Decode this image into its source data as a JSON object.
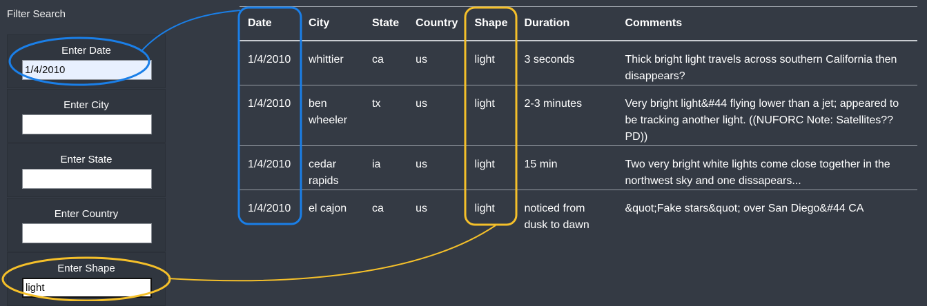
{
  "sidebar": {
    "title": "Filter Search",
    "filters": [
      {
        "label": "Enter Date",
        "value": "1/4/2010"
      },
      {
        "label": "Enter City",
        "value": ""
      },
      {
        "label": "Enter State",
        "value": ""
      },
      {
        "label": "Enter Country",
        "value": ""
      },
      {
        "label": "Enter Shape",
        "value": "light"
      }
    ]
  },
  "table": {
    "headers": [
      "Date",
      "City",
      "State",
      "Country",
      "Shape",
      "Duration",
      "Comments"
    ],
    "rows": [
      {
        "date": "1/4/2010",
        "city": "whittier",
        "state": "ca",
        "country": "us",
        "shape": "light",
        "duration": "3 seconds",
        "comments": "Thick bright light travels across southern California then disappears?"
      },
      {
        "date": "1/4/2010",
        "city": "ben wheeler",
        "state": "tx",
        "country": "us",
        "shape": "light",
        "duration": "2-3 minutes",
        "comments": "Very bright light&#44 flying lower than a jet; appeared to be tracking another light. ((NUFORC Note: Satellites?? PD))"
      },
      {
        "date": "1/4/2010",
        "city": "cedar rapids",
        "state": "ia",
        "country": "us",
        "shape": "light",
        "duration": "15 min",
        "comments": "Two very bright white lights come close together in the northwest sky and one dissapears..."
      },
      {
        "date": "1/4/2010",
        "city": "el cajon",
        "state": "ca",
        "country": "us",
        "shape": "light",
        "duration": "noticed from dusk to dawn",
        "comments": "&quot;Fake stars&quot; over San Diego&#44 CA"
      }
    ]
  },
  "annotations": {
    "date_color": "#1a7fe8",
    "shape_color": "#f5c02a"
  }
}
